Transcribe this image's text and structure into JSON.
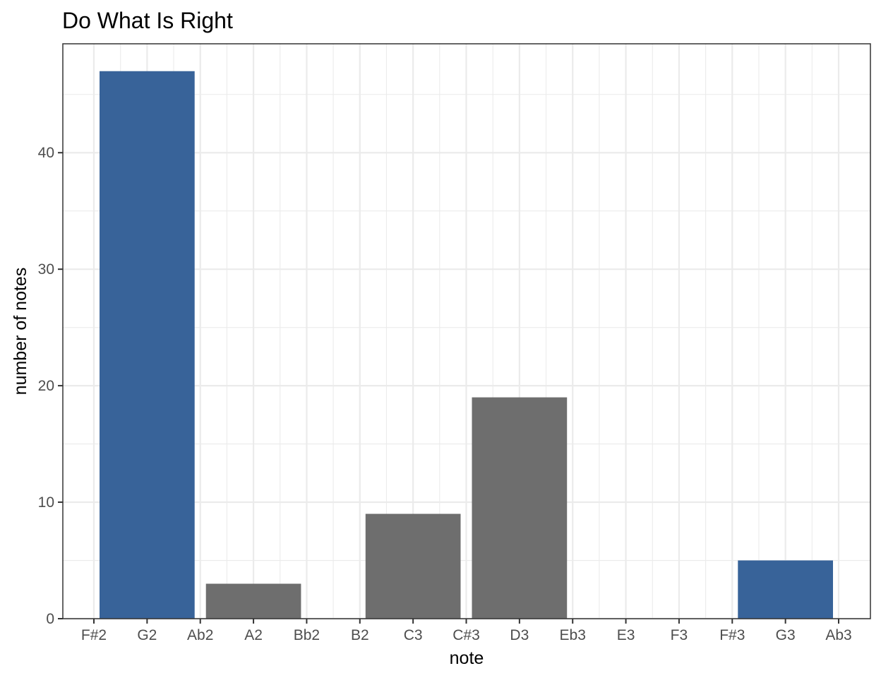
{
  "chart_data": {
    "type": "bar",
    "title": "Do What Is Right",
    "xlabel": "note",
    "ylabel": "number of notes",
    "categories": [
      "F#2",
      "G2",
      "Ab2",
      "A2",
      "Bb2",
      "B2",
      "C3",
      "C#3",
      "D3",
      "Eb3",
      "E3",
      "F3",
      "F#3",
      "G3",
      "Ab3"
    ],
    "bars": [
      {
        "x": "G2",
        "x_start": "F#2",
        "x_end": "Ab2",
        "value": 47,
        "highlight": true
      },
      {
        "x": "A2",
        "x_start": "Ab2",
        "x_end": "Bb2",
        "value": 3,
        "highlight": false
      },
      {
        "x": "C3",
        "x_start": "B2",
        "x_end": "C#3",
        "value": 9,
        "highlight": false
      },
      {
        "x": "D3",
        "x_start": "C#3",
        "x_end": "Eb3",
        "value": 19,
        "highlight": false
      },
      {
        "x": "G3",
        "x_start": "F#3",
        "x_end": "Ab3",
        "value": 5,
        "highlight": true
      }
    ],
    "ylim": [
      0,
      49.35
    ],
    "yticks": [
      0,
      10,
      20,
      30,
      40
    ],
    "grid": true,
    "colors": {
      "highlight": "#386399",
      "default": "#6e6e6e"
    }
  }
}
